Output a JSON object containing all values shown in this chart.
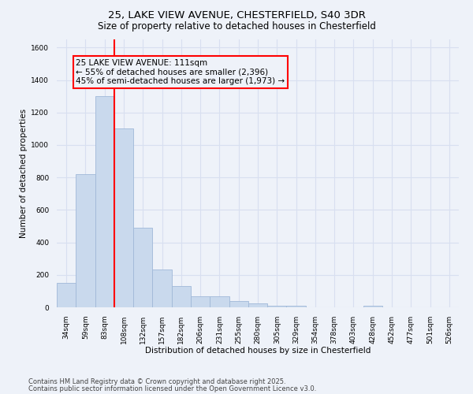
{
  "title_line1": "25, LAKE VIEW AVENUE, CHESTERFIELD, S40 3DR",
  "title_line2": "Size of property relative to detached houses in Chesterfield",
  "xlabel": "Distribution of detached houses by size in Chesterfield",
  "ylabel": "Number of detached properties",
  "categories": [
    "34sqm",
    "59sqm",
    "83sqm",
    "108sqm",
    "132sqm",
    "157sqm",
    "182sqm",
    "206sqm",
    "231sqm",
    "255sqm",
    "280sqm",
    "305sqm",
    "329sqm",
    "354sqm",
    "378sqm",
    "403sqm",
    "428sqm",
    "452sqm",
    "477sqm",
    "501sqm",
    "526sqm"
  ],
  "values": [
    150,
    820,
    1300,
    1100,
    490,
    235,
    130,
    70,
    70,
    37,
    25,
    12,
    12,
    0,
    0,
    0,
    12,
    0,
    0,
    0,
    0
  ],
  "bar_color": "#c9d9ed",
  "bar_edgecolor": "#a0b8d8",
  "bar_width": 1.0,
  "redline_x": 3.0,
  "annotation_text": "25 LAKE VIEW AVENUE: 111sqm\n← 55% of detached houses are smaller (2,396)\n45% of semi-detached houses are larger (1,973) →",
  "annotation_box_edgecolor": "red",
  "ylim": [
    0,
    1650
  ],
  "yticks": [
    0,
    200,
    400,
    600,
    800,
    1000,
    1200,
    1400,
    1600
  ],
  "footnote_line1": "Contains HM Land Registry data © Crown copyright and database right 2025.",
  "footnote_line2": "Contains public sector information licensed under the Open Government Licence v3.0.",
  "bg_color": "#eef2f9",
  "grid_color": "#d8dff0",
  "title_fontsize": 9.5,
  "subtitle_fontsize": 8.5,
  "axis_label_fontsize": 7.5,
  "tick_fontsize": 6.5,
  "annotation_fontsize": 7.5,
  "footnote_fontsize": 6
}
